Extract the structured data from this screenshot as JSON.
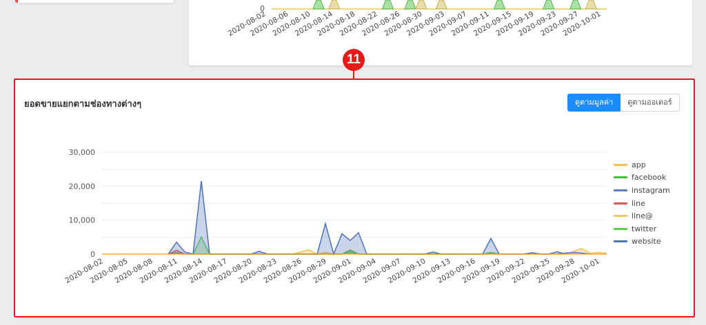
{
  "top_chart": {
    "zero_label": "0",
    "tick_labels": [
      "2020-08-02",
      "2020-08-06",
      "2020-08-10",
      "2020-08-14",
      "2020-08-18",
      "2020-08-22",
      "2020-08-26",
      "2020-08-30",
      "2020-09-03",
      "2020-09-07",
      "2020-09-11",
      "2020-09-15",
      "2020-09-19",
      "2020-09-23",
      "2020-09-27",
      "2020-10-01"
    ]
  },
  "annotation": {
    "step_number": "11"
  },
  "card": {
    "title": "ยอดขายแยกตามช่องทางต่างๆ",
    "view_by_value_label": "ดูตามมูลค่า",
    "view_by_orders_label": "ดูตามออเดอร์"
  },
  "colors": {
    "accent": "#1a8cff",
    "highlight": "#e31b1b",
    "app": "#f5c04a",
    "facebook": "#48b83f",
    "instagram": "#5b7fbf",
    "line": "#e25555",
    "line@": "#f7c65a",
    "twitter": "#5fcf4f",
    "website": "#4e72b8"
  },
  "chart_data": {
    "type": "area",
    "title": "",
    "ylim": [
      0,
      30000
    ],
    "yticks": [
      0,
      10000,
      20000,
      30000
    ],
    "ytick_labels": [
      "0",
      "10,000",
      "20,000",
      "30,000"
    ],
    "x_start": "2020-08-02",
    "x_end": "2020-10-02",
    "xtick_labels": [
      "2020-08-02",
      "2020-08-05",
      "2020-08-08",
      "2020-08-11",
      "2020-08-14",
      "2020-08-17",
      "2020-08-20",
      "2020-08-23",
      "2020-08-26",
      "2020-08-29",
      "2020-09-01",
      "2020-09-04",
      "2020-09-07",
      "2020-09-10",
      "2020-09-13",
      "2020-09-16",
      "2020-09-19",
      "2020-09-22",
      "2020-09-25",
      "2020-09-28",
      "2020-10-01"
    ],
    "legend_position": "right",
    "grid": true,
    "series": [
      {
        "name": "app",
        "color": "#f5c04a",
        "points": [
          [
            "2020-08-25",
            0
          ],
          [
            "2020-08-27",
            1200
          ],
          [
            "2020-08-28",
            0
          ],
          [
            "2020-08-31",
            0
          ],
          [
            "2020-09-01",
            300
          ],
          [
            "2020-09-02",
            0
          ],
          [
            "2020-09-27",
            0
          ],
          [
            "2020-09-29",
            1600
          ],
          [
            "2020-09-30",
            200
          ],
          [
            "2020-10-01",
            500
          ],
          [
            "2020-10-02",
            200
          ]
        ]
      },
      {
        "name": "facebook",
        "color": "#48b83f",
        "points": [
          [
            "2020-08-10",
            0
          ],
          [
            "2020-08-11",
            400
          ],
          [
            "2020-08-12",
            0
          ],
          [
            "2020-08-31",
            0
          ],
          [
            "2020-09-01",
            1200
          ],
          [
            "2020-09-02",
            0
          ],
          [
            "2020-09-17",
            0
          ],
          [
            "2020-09-18",
            400
          ],
          [
            "2020-09-19",
            0
          ]
        ]
      },
      {
        "name": "instagram",
        "color": "#5b7fbf",
        "points": [
          [
            "2020-09-26",
            0
          ],
          [
            "2020-09-27",
            300
          ],
          [
            "2020-09-28",
            500
          ],
          [
            "2020-09-29",
            300
          ],
          [
            "2020-09-30",
            0
          ]
        ]
      },
      {
        "name": "line",
        "color": "#e25555",
        "points": [
          [
            "2020-08-10",
            0
          ],
          [
            "2020-08-11",
            1100
          ],
          [
            "2020-08-12",
            0
          ]
        ]
      },
      {
        "name": "line@",
        "color": "#f7c65a",
        "points": [
          [
            "2020-08-28",
            0
          ],
          [
            "2020-08-29",
            500
          ],
          [
            "2020-08-30",
            0
          ]
        ]
      },
      {
        "name": "twitter",
        "color": "#5fcf4f",
        "points": [
          [
            "2020-08-13",
            0
          ],
          [
            "2020-08-14",
            5000
          ],
          [
            "2020-08-15",
            0
          ],
          [
            "2020-08-31",
            0
          ],
          [
            "2020-09-01",
            700
          ],
          [
            "2020-09-02",
            0
          ],
          [
            "2020-09-17",
            0
          ],
          [
            "2020-09-18",
            500
          ],
          [
            "2020-09-19",
            0
          ]
        ]
      },
      {
        "name": "website",
        "color": "#4e72b8",
        "points": [
          [
            "2020-08-10",
            0
          ],
          [
            "2020-08-11",
            3500
          ],
          [
            "2020-08-12",
            600
          ],
          [
            "2020-08-13",
            0
          ],
          [
            "2020-08-14",
            21500
          ],
          [
            "2020-08-15",
            0
          ],
          [
            "2020-08-20",
            0
          ],
          [
            "2020-08-21",
            800
          ],
          [
            "2020-08-22",
            0
          ],
          [
            "2020-08-28",
            0
          ],
          [
            "2020-08-29",
            9000
          ],
          [
            "2020-08-30",
            0
          ],
          [
            "2020-08-31",
            6000
          ],
          [
            "2020-09-01",
            4000
          ],
          [
            "2020-09-02",
            6300
          ],
          [
            "2020-09-03",
            0
          ],
          [
            "2020-09-10",
            0
          ],
          [
            "2020-09-11",
            600
          ],
          [
            "2020-09-12",
            0
          ],
          [
            "2020-09-17",
            0
          ],
          [
            "2020-09-18",
            4600
          ],
          [
            "2020-09-19",
            0
          ],
          [
            "2020-09-22",
            0
          ],
          [
            "2020-09-23",
            400
          ],
          [
            "2020-09-24",
            0
          ],
          [
            "2020-09-25",
            0
          ],
          [
            "2020-09-26",
            700
          ],
          [
            "2020-09-27",
            0
          ]
        ]
      }
    ]
  }
}
